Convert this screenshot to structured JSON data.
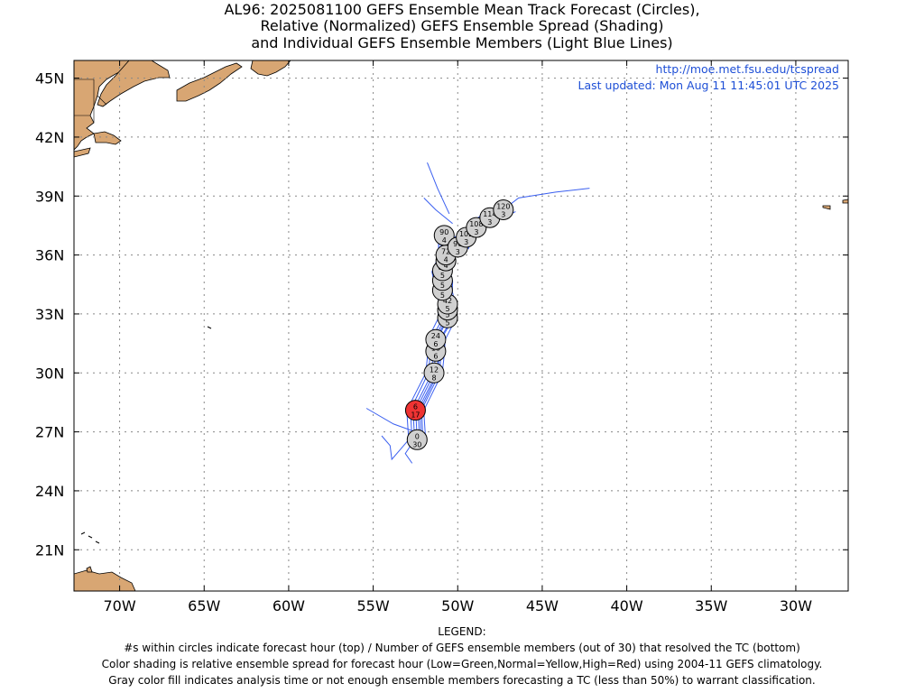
{
  "title": {
    "line1": "AL96: 2025081100 GEFS Ensemble Mean Track Forecast (Circles),",
    "line2": "Relative (Normalized) GEFS Ensemble Spread (Shading)",
    "line3": "and Individual GEFS Ensemble Members (Light Blue Lines)"
  },
  "source": {
    "url": "http://moe.met.fsu.edu/tcspread",
    "updated": "Last updated: Mon Aug 11 11:45:01 UTC 2025"
  },
  "axes": {
    "lat_labels": [
      "45N",
      "42N",
      "39N",
      "36N",
      "33N",
      "30N",
      "27N",
      "24N",
      "21N"
    ],
    "lat_values": [
      45,
      42,
      39,
      36,
      33,
      30,
      27,
      24,
      21
    ],
    "lon_labels": [
      "70W",
      "65W",
      "60W",
      "55W",
      "50W",
      "45W",
      "40W",
      "35W",
      "30W"
    ],
    "lon_values": [
      -70,
      -65,
      -60,
      -55,
      -50,
      -45,
      -40,
      -35,
      -30
    ],
    "lat_range": [
      18.9,
      45.9
    ],
    "lon_range": [
      -72.7,
      -26.9
    ]
  },
  "colors": {
    "land": "#d8a673",
    "member_tracks": "#3a5ff0",
    "gray_fill": "#d0d0d0",
    "high_spread": "#ee3333",
    "url_text": "#1e4fd6"
  },
  "mean_track": [
    {
      "hour": "0",
      "members": "30",
      "lat": 26.6,
      "lon": -52.4,
      "fill": "gray"
    },
    {
      "hour": "6",
      "members": "17",
      "lat": 28.1,
      "lon": -52.5,
      "fill": "red"
    },
    {
      "hour": "12",
      "members": "8",
      "lat": 30.0,
      "lon": -51.4,
      "fill": "gray"
    },
    {
      "hour": "18",
      "members": "6",
      "lat": 31.1,
      "lon": -51.3,
      "fill": "gray"
    },
    {
      "hour": "24",
      "members": "6",
      "lat": 31.7,
      "lon": -51.3,
      "fill": "gray"
    },
    {
      "hour": "30",
      "members": "5",
      "lat": 32.8,
      "lon": -50.6,
      "fill": "gray"
    },
    {
      "hour": "36",
      "members": "5",
      "lat": 33.2,
      "lon": -50.6,
      "fill": "gray"
    },
    {
      "hour": "42",
      "members": "5",
      "lat": 33.5,
      "lon": -50.6,
      "fill": "gray"
    },
    {
      "hour": "48",
      "members": "5",
      "lat": 34.2,
      "lon": -50.9,
      "fill": "gray"
    },
    {
      "hour": "54",
      "members": "5",
      "lat": 34.7,
      "lon": -50.9,
      "fill": "gray"
    },
    {
      "hour": "60",
      "members": "5",
      "lat": 35.2,
      "lon": -50.9,
      "fill": "gray"
    },
    {
      "hour": "66",
      "members": "4",
      "lat": 35.7,
      "lon": -50.7,
      "fill": "gray"
    },
    {
      "hour": "72",
      "members": "4",
      "lat": 36.0,
      "lon": -50.7,
      "fill": "gray"
    },
    {
      "hour": "90",
      "members": "4",
      "lat": 37.0,
      "lon": -50.8,
      "fill": "gray"
    },
    {
      "hour": "96",
      "members": "3",
      "lat": 36.4,
      "lon": -50.0,
      "fill": "gray"
    },
    {
      "hour": "102",
      "members": "3",
      "lat": 36.9,
      "lon": -49.5,
      "fill": "gray"
    },
    {
      "hour": "108",
      "members": "3",
      "lat": 37.4,
      "lon": -48.9,
      "fill": "gray"
    },
    {
      "hour": "114",
      "members": "3",
      "lat": 37.9,
      "lon": -48.1,
      "fill": "gray"
    },
    {
      "hour": "120",
      "members": "3",
      "lat": 38.3,
      "lon": -47.3,
      "fill": "gray"
    }
  ],
  "legend": {
    "heading": "LEGEND:",
    "line1": "#s within circles indicate forecast hour (top) / Number of GEFS ensemble members (out of 30) that resolved the TC (bottom)",
    "line2": "Color shading is relative ensemble spread for forecast hour (Low=Green,Normal=Yellow,High=Red) using 2004-11 GEFS climatology.",
    "line3": "Gray color fill indicates analysis time or not enough ensemble members forecasting a TC (less than 50%) to warrant classification."
  }
}
